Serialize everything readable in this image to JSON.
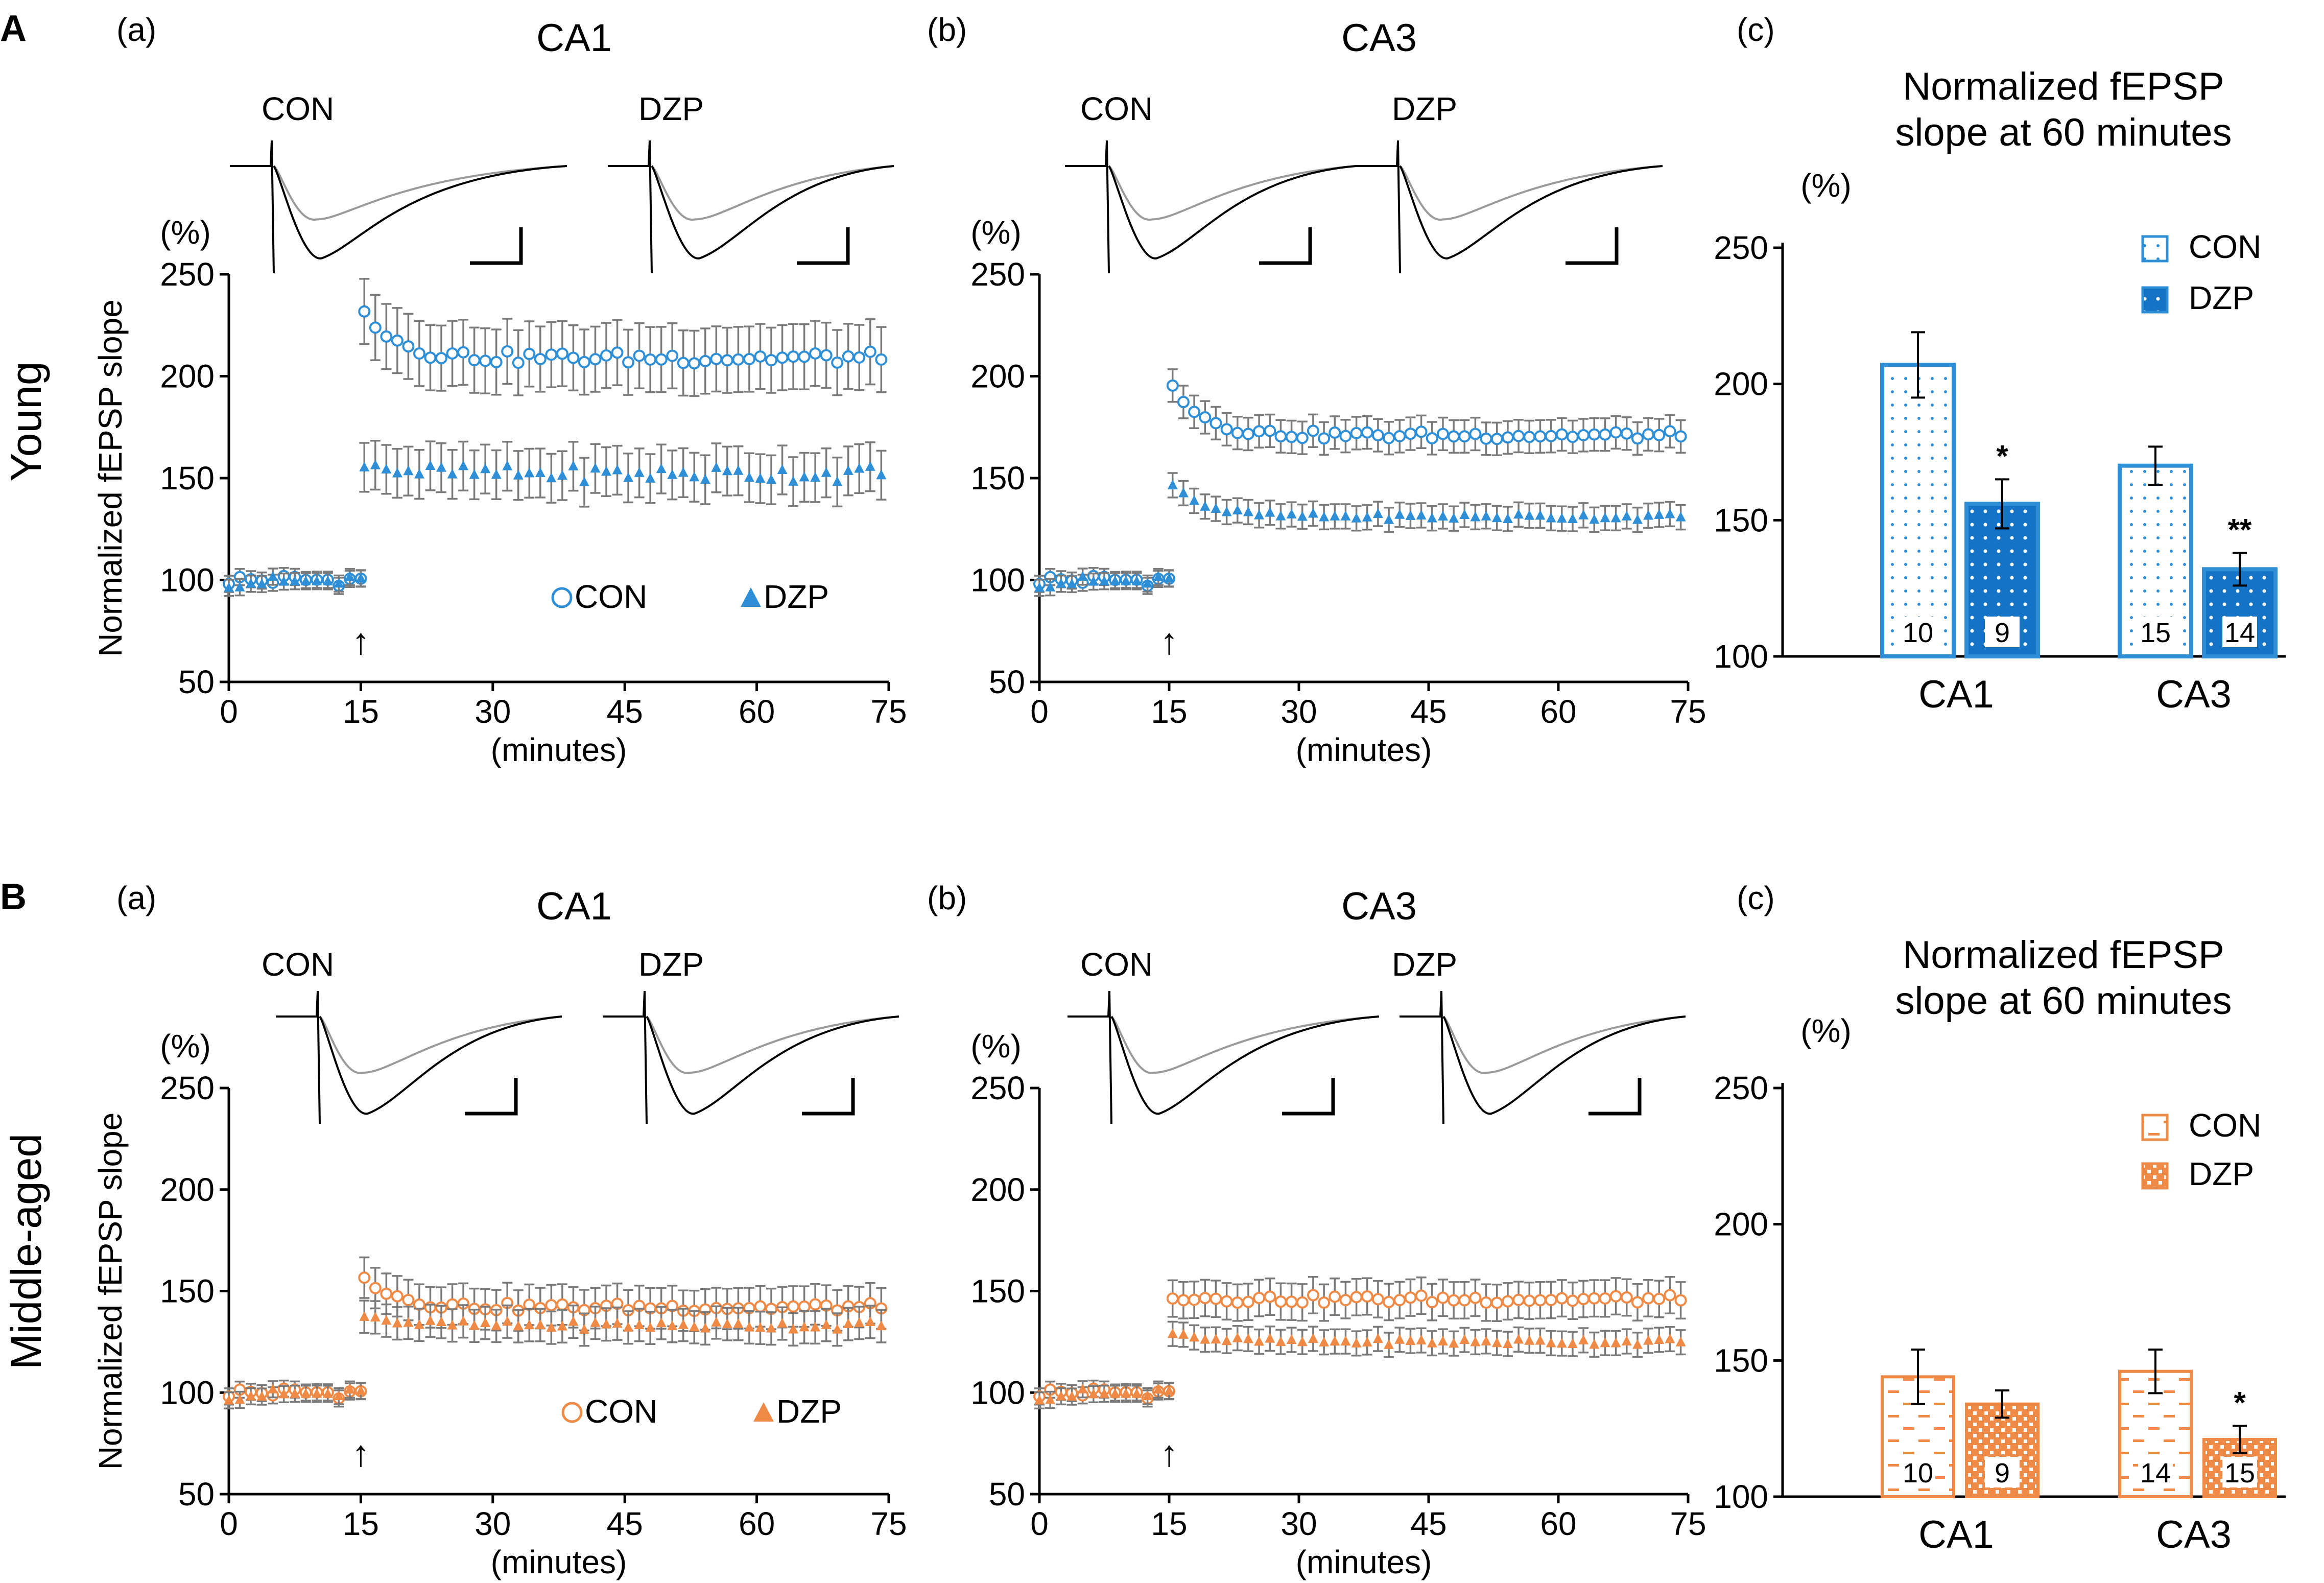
{
  "figure": {
    "rows": [
      {
        "key": "A",
        "label": "A",
        "condition": "Young",
        "color": "#2f8fd6"
      },
      {
        "key": "B",
        "label": "B",
        "condition": "Middle-aged",
        "color": "#ee8a45"
      }
    ],
    "ylabel": "Normalized fEPSP slope",
    "yunit": "(%)",
    "xlabel": "(minutes)",
    "arrow_glyph": "↑",
    "bar_title_line1": "Normalized fEPSP",
    "bar_title_line2": "slope at 60 minutes"
  },
  "chart_data": [
    {
      "id": "A-a",
      "type": "scatter",
      "row": "A",
      "panel": "(a)",
      "title": "CA1",
      "trace_labels": [
        "CON",
        "DZP"
      ],
      "xlabel": "(minutes)",
      "ylabel": "Normalized fEPSP slope",
      "xlim": [
        0,
        75
      ],
      "ylim": [
        50,
        250
      ],
      "xticks": [
        0,
        15,
        30,
        45,
        60,
        75
      ],
      "yticks": [
        50,
        100,
        150,
        200,
        250
      ],
      "hfs_arrow_minute": 15,
      "series": [
        {
          "name": "CON",
          "marker": "circle",
          "baseline": 100,
          "start": 237,
          "plateau": 209,
          "error": 16,
          "jitter": 3
        },
        {
          "name": "DZP",
          "marker": "triangle",
          "baseline": 99,
          "start": 160,
          "plateau": 152,
          "error": 12,
          "jitter": 4
        }
      ]
    },
    {
      "id": "A-b",
      "type": "scatter",
      "row": "A",
      "panel": "(b)",
      "title": "CA3",
      "trace_labels": [
        "CON",
        "DZP"
      ],
      "xlabel": "(minutes)",
      "ylabel": "",
      "xlim": [
        0,
        75
      ],
      "ylim": [
        50,
        250
      ],
      "xticks": [
        0,
        15,
        30,
        45,
        60,
        75
      ],
      "yticks": [
        50,
        100,
        150,
        200,
        250
      ],
      "hfs_arrow_minute": 15,
      "series": [
        {
          "name": "CON",
          "marker": "circle",
          "baseline": 100,
          "start": 200,
          "plateau": 171,
          "error": 8,
          "jitter": 2
        },
        {
          "name": "DZP",
          "marker": "triangle",
          "baseline": 99,
          "start": 150,
          "plateau": 131,
          "error": 6,
          "jitter": 1.5
        }
      ]
    },
    {
      "id": "A-c",
      "type": "bar",
      "row": "A",
      "panel": "(c)",
      "categories": [
        "CA1",
        "CA3"
      ],
      "ylim": [
        100,
        250
      ],
      "yticks": [
        100,
        150,
        200,
        250
      ],
      "series": [
        {
          "name": "CON",
          "values": [
            207,
            170
          ],
          "errors": [
            12,
            7
          ],
          "n": [
            "10",
            "15"
          ],
          "sig": [
            "",
            ""
          ]
        },
        {
          "name": "DZP",
          "values": [
            156,
            132
          ],
          "errors": [
            9,
            6
          ],
          "n": [
            "9",
            "14"
          ],
          "sig": [
            "*",
            "**"
          ]
        }
      ]
    },
    {
      "id": "B-a",
      "type": "scatter",
      "row": "B",
      "panel": "(a)",
      "title": "CA1",
      "trace_labels": [
        "CON",
        "DZP"
      ],
      "xlabel": "(minutes)",
      "ylabel": "Normalized fEPSP slope",
      "xlim": [
        0,
        75
      ],
      "ylim": [
        50,
        250
      ],
      "xticks": [
        0,
        15,
        30,
        45,
        60,
        75
      ],
      "yticks": [
        50,
        100,
        150,
        200,
        250
      ],
      "hfs_arrow_minute": 15,
      "series": [
        {
          "name": "CON",
          "marker": "circle",
          "baseline": 100,
          "start": 160,
          "plateau": 142,
          "error": 10,
          "jitter": 2
        },
        {
          "name": "DZP",
          "marker": "triangle",
          "baseline": 99,
          "start": 140,
          "plateau": 133,
          "error": 8,
          "jitter": 2
        }
      ]
    },
    {
      "id": "B-b",
      "type": "scatter",
      "row": "B",
      "panel": "(b)",
      "title": "CA3",
      "trace_labels": [
        "CON",
        "DZP"
      ],
      "xlabel": "(minutes)",
      "ylabel": "",
      "xlim": [
        0,
        75
      ],
      "ylim": [
        50,
        250
      ],
      "xticks": [
        0,
        15,
        30,
        45,
        60,
        75
      ],
      "yticks": [
        50,
        100,
        150,
        200,
        250
      ],
      "hfs_arrow_minute": 15,
      "series": [
        {
          "name": "CON",
          "marker": "circle",
          "baseline": 100,
          "start": 148,
          "plateau": 146,
          "error": 9,
          "jitter": 2
        },
        {
          "name": "DZP",
          "marker": "triangle",
          "baseline": 99,
          "start": 131,
          "plateau": 125,
          "error": 6,
          "jitter": 1.5
        }
      ]
    },
    {
      "id": "B-c",
      "type": "bar",
      "row": "B",
      "panel": "(c)",
      "categories": [
        "CA1",
        "CA3"
      ],
      "ylim": [
        100,
        250
      ],
      "yticks": [
        100,
        150,
        200,
        250
      ],
      "series": [
        {
          "name": "CON",
          "values": [
            144,
            146
          ],
          "errors": [
            10,
            8
          ],
          "n": [
            "10",
            "14"
          ],
          "sig": [
            "",
            ""
          ]
        },
        {
          "name": "DZP",
          "values": [
            134,
            121
          ],
          "errors": [
            5,
            5
          ],
          "n": [
            "9",
            "15"
          ],
          "sig": [
            "",
            "*"
          ]
        }
      ]
    }
  ]
}
